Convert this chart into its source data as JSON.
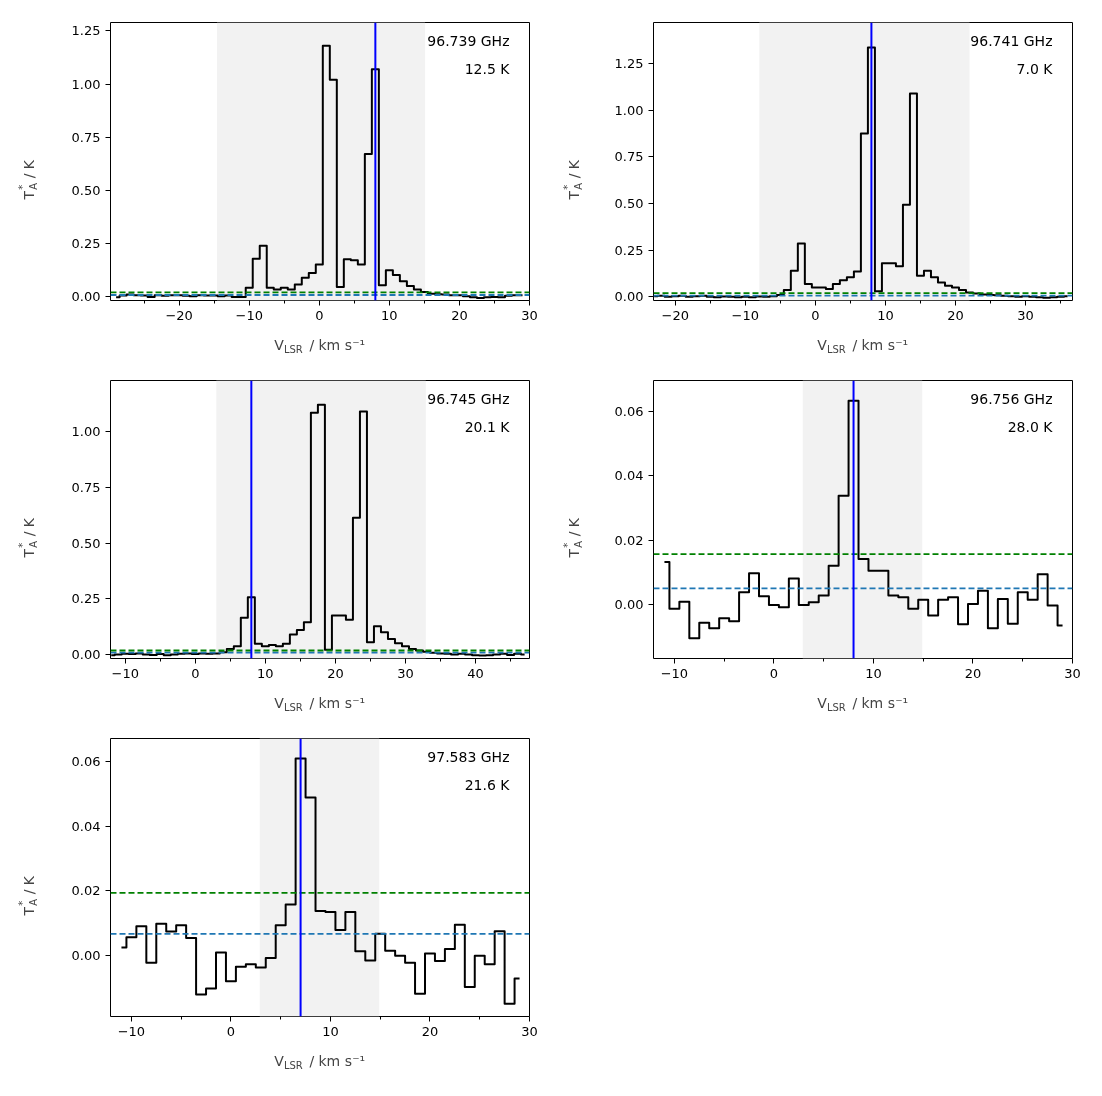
{
  "chart_data": [
    {
      "type": "step",
      "annotations": [
        "96.739 GHz",
        "12.5 K"
      ],
      "xlabel": "V$_{LSR}$ / km s⁻¹",
      "ylabel": "T$^{*}$$_{A}$ / K",
      "x": [
        -29,
        -28,
        -27,
        -26,
        -25,
        -24,
        -23,
        -22,
        -21,
        -20,
        -19,
        -18,
        -17,
        -16,
        -15,
        -14,
        -13,
        -12,
        -11,
        -10,
        -9,
        -8,
        -7,
        -6,
        -5,
        -4,
        -3,
        -2,
        -1,
        0,
        1,
        2,
        3,
        4,
        5,
        6,
        7,
        8,
        9,
        10,
        11,
        12,
        13,
        14,
        15,
        16,
        17,
        18,
        19,
        20,
        21,
        22,
        23,
        24,
        25,
        26,
        27,
        28,
        29
      ],
      "series": [
        {
          "color": "#000000",
          "values": [
            -0.005,
            0.003,
            0.008,
            0.005,
            0.003,
            -0.003,
            0.005,
            0.002,
            0.005,
            0.005,
            0.002,
            0.0,
            0.005,
            0.003,
            0.003,
            0.0,
            0.003,
            -0.003,
            -0.003,
            0.04,
            0.177,
            0.238,
            0.04,
            0.032,
            0.04,
            0.032,
            0.055,
            0.087,
            0.11,
            0.15,
            1.18,
            1.02,
            0.044,
            0.174,
            0.17,
            0.15,
            0.67,
            1.07,
            0.052,
            0.122,
            0.1,
            0.071,
            0.048,
            0.032,
            0.02,
            0.012,
            0.01,
            0.008,
            0.005,
            0.005,
            0.0,
            -0.005,
            -0.008,
            -0.005,
            -0.003,
            -0.005,
            0.002,
            0.005,
            0.005
          ]
        }
      ],
      "xlim": [
        -29.8,
        30
      ],
      "ylim": [
        -0.02,
        1.29
      ],
      "xticks": [
        -20,
        -10,
        0,
        10,
        20,
        30
      ],
      "yticks": [
        {
          "value": 0,
          "label": "0.00"
        },
        0.25,
        {
          "value": 0.5,
          "label": "0.50"
        },
        0.75,
        {
          "value": 1,
          "label": "1.00"
        },
        1.25
      ],
      "ref_lines": [
        {
          "axis": "y",
          "value": 0.006,
          "color": "#1f77b4",
          "line_style": "dashed"
        },
        {
          "axis": "y",
          "value": 0.018,
          "color": "#008000",
          "line_style": "dashed"
        },
        {
          "axis": "x",
          "value": 8,
          "color": "#0000ff",
          "line_style": "solid"
        }
      ],
      "bands": [
        {
          "axis": "x",
          "from": -14.6,
          "to": 15.1,
          "color": "#f2f2f2"
        }
      ]
    },
    {
      "type": "step",
      "annotations": [
        "96.741 GHz",
        "7.0 K"
      ],
      "xlabel": "V$_{LSR}$ / km s⁻¹",
      "ylabel": "T$^{*}$$_{A}$ / K",
      "x": [
        -23,
        -22,
        -21,
        -20,
        -19,
        -18,
        -17,
        -16,
        -15,
        -14,
        -13,
        -12,
        -11,
        -10,
        -9,
        -8,
        -7,
        -6,
        -5,
        -4,
        -3,
        -2,
        -1,
        0,
        1,
        2,
        3,
        4,
        5,
        6,
        7,
        8,
        9,
        10,
        11,
        12,
        13,
        14,
        15,
        16,
        17,
        18,
        19,
        20,
        21,
        22,
        23,
        24,
        25,
        26,
        27,
        28,
        29,
        30,
        31,
        32,
        33,
        34,
        35,
        36
      ],
      "series": [
        {
          "color": "#000000",
          "values": [
            0.003,
            0.005,
            0.0,
            0.003,
            0.005,
            0.0,
            0.003,
            0.005,
            0.0,
            -0.002,
            0.002,
            0.0,
            -0.003,
            0.0,
            -0.003,
            0.002,
            0.0,
            0.003,
            0.01,
            0.036,
            0.139,
            0.286,
            0.068,
            0.05,
            0.05,
            0.041,
            0.068,
            0.089,
            0.104,
            0.136,
            0.875,
            1.336,
            0.029,
            0.18,
            0.18,
            0.163,
            0.493,
            1.089,
            0.113,
            0.139,
            0.104,
            0.077,
            0.059,
            0.05,
            0.036,
            0.023,
            0.018,
            0.012,
            0.01,
            0.008,
            0.005,
            0.003,
            0.0,
            0.003,
            0.0,
            -0.003,
            -0.005,
            -0.003,
            0.0,
            0.003
          ]
        }
      ],
      "xlim": [
        -23.1,
        36.7
      ],
      "ylim": [
        -0.02,
        1.47
      ],
      "xticks": [
        -20,
        -10,
        0,
        10,
        20,
        30
      ],
      "yticks": [
        {
          "value": 0,
          "label": "0.00"
        },
        0.25,
        {
          "value": 0.5,
          "label": "0.50"
        },
        0.75,
        {
          "value": 1,
          "label": "1.00"
        },
        1.25
      ],
      "ref_lines": [
        {
          "axis": "y",
          "value": 0.006,
          "color": "#1f77b4",
          "line_style": "dashed"
        },
        {
          "axis": "y",
          "value": 0.02,
          "color": "#008000",
          "line_style": "dashed"
        },
        {
          "axis": "x",
          "value": 8,
          "color": "#0000ff",
          "line_style": "solid"
        }
      ],
      "bands": [
        {
          "axis": "x",
          "from": -8,
          "to": 22,
          "color": "#f2f2f2"
        }
      ]
    },
    {
      "type": "step",
      "annotations": [
        "96.745 GHz",
        "20.1 K"
      ],
      "xlabel": "V$_{LSR}$ / km s⁻¹",
      "ylabel": "T$^{*}$$_{A}$ / K",
      "x": [
        -12,
        -11,
        -10,
        -9,
        -8,
        -7,
        -6,
        -5,
        -4,
        -3,
        -2,
        -1,
        0,
        1,
        2,
        3,
        4,
        5,
        6,
        7,
        8,
        9,
        10,
        11,
        12,
        13,
        14,
        15,
        16,
        17,
        18,
        19,
        20,
        21,
        22,
        23,
        24,
        25,
        26,
        27,
        28,
        29,
        30,
        31,
        32,
        33,
        34,
        35,
        36,
        37,
        38,
        39,
        40,
        41,
        42,
        43,
        44,
        45,
        46,
        47
      ],
      "series": [
        {
          "color": "#000000",
          "values": [
            -0.003,
            0.0,
            0.003,
            0.002,
            0.005,
            0.0,
            -0.002,
            0.002,
            -0.003,
            0.0,
            0.003,
            0.005,
            0.002,
            0.005,
            0.003,
            0.005,
            0.01,
            0.025,
            0.037,
            0.165,
            0.257,
            0.048,
            0.037,
            0.043,
            0.037,
            0.048,
            0.09,
            0.11,
            0.145,
            1.085,
            1.121,
            0.021,
            0.175,
            0.175,
            0.156,
            0.614,
            1.091,
            0.055,
            0.127,
            0.1,
            0.07,
            0.051,
            0.037,
            0.025,
            0.018,
            0.012,
            0.008,
            0.005,
            0.003,
            0.0,
            0.003,
            0.0,
            -0.003,
            -0.005,
            -0.003,
            0.0,
            0.003,
            -0.002,
            0.003,
            0.0
          ]
        }
      ],
      "xlim": [
        -12.1,
        47.7
      ],
      "ylim": [
        -0.018,
        1.23
      ],
      "xticks": [
        -10,
        0,
        10,
        20,
        30,
        40
      ],
      "yticks": [
        {
          "value": 0,
          "label": "0.00"
        },
        0.25,
        {
          "value": 0.5,
          "label": "0.50"
        },
        0.75,
        {
          "value": 1,
          "label": "1.00"
        }
      ],
      "ref_lines": [
        {
          "axis": "y",
          "value": 0.008,
          "color": "#1f77b4",
          "line_style": "dashed"
        },
        {
          "axis": "y",
          "value": 0.018,
          "color": "#008000",
          "line_style": "dashed"
        },
        {
          "axis": "x",
          "value": 8,
          "color": "#0000ff",
          "line_style": "solid"
        }
      ],
      "bands": [
        {
          "axis": "x",
          "from": 3,
          "to": 32.9,
          "color": "#f2f2f2"
        }
      ]
    },
    {
      "type": "step",
      "annotations": [
        "96.756 GHz",
        "28.0 K"
      ],
      "xlabel": "V$_{LSR}$ / km s⁻¹",
      "ylabel": "T$^{*}$$_{A}$ / K",
      "x": [
        -11,
        -10,
        -9,
        -8,
        -7,
        -6,
        -5,
        -4,
        -3,
        -2,
        -1,
        0,
        1,
        2,
        3,
        4,
        5,
        6,
        7,
        8,
        9,
        10,
        11,
        12,
        13,
        14,
        15,
        16,
        17,
        18,
        19,
        20,
        21,
        22,
        23,
        24,
        25,
        26,
        27,
        28,
        29
      ],
      "series": [
        {
          "color": "#000000",
          "values": [
            0.0133,
            -0.0012,
            0.001,
            -0.0103,
            -0.0055,
            -0.0072,
            -0.0041,
            -0.0051,
            0.0039,
            0.0098,
            0.0027,
            0.0,
            -0.0007,
            0.0082,
            0.0,
            0.0008,
            0.0029,
            0.0121,
            0.0338,
            0.0632,
            0.0142,
            0.0106,
            0.0106,
            0.0029,
            0.0024,
            -0.0012,
            0.0016,
            -0.0033,
            0.0016,
            0.0024,
            -0.006,
            0.0003,
            0.0044,
            -0.0072,
            0.0018,
            -0.0058,
            0.0039,
            0.0016,
            0.0095,
            -0.0002,
            -0.0064
          ]
        }
      ],
      "xlim": [
        -12.1,
        30
      ],
      "ylim": [
        -0.0166,
        0.0695
      ],
      "xticks": [
        -10,
        0,
        10,
        20,
        30
      ],
      "yticks": [
        {
          "value": 0,
          "label": "0.00"
        },
        0.02,
        0.04,
        0.06
      ],
      "ref_lines": [
        {
          "axis": "y",
          "value": 0.0051,
          "color": "#1f77b4",
          "line_style": "dashed"
        },
        {
          "axis": "y",
          "value": 0.0157,
          "color": "#008000",
          "line_style": "dashed"
        },
        {
          "axis": "x",
          "value": 8,
          "color": "#0000ff",
          "line_style": "solid"
        }
      ],
      "bands": [
        {
          "axis": "x",
          "from": 2.9,
          "to": 14.9,
          "color": "#f2f2f2"
        }
      ]
    },
    {
      "type": "step",
      "annotations": [
        "97.583 GHz",
        "21.6 K"
      ],
      "xlabel": "V$_{LSR}$ / km s⁻¹",
      "ylabel": "T$^{*}$$_{A}$ / K",
      "x": [
        -11,
        -10,
        -9,
        -8,
        -7,
        -6,
        -5,
        -4,
        -3,
        -2,
        -1,
        0,
        1,
        2,
        3,
        4,
        5,
        6,
        7,
        8,
        9,
        10,
        11,
        12,
        13,
        14,
        15,
        16,
        17,
        18,
        19,
        20,
        21,
        22,
        23,
        24,
        25,
        26,
        27,
        28,
        29
      ],
      "series": [
        {
          "color": "#000000",
          "values": [
            0.0026,
            0.0057,
            0.0091,
            -0.0021,
            0.0099,
            0.0075,
            0.0094,
            0.0055,
            -0.0119,
            -0.0101,
            0.001,
            -0.0078,
            -0.0034,
            -0.0026,
            -0.0036,
            -0.0007,
            0.0094,
            0.0158,
            0.0608,
            0.0488,
            0.0138,
            0.0135,
            0.008,
            0.0135,
            0.0014,
            -0.0014,
            0.0068,
            0.0016,
            0.0,
            -0.0021,
            -0.0117,
            0.0007,
            -0.0016,
            0.0021,
            0.0096,
            -0.0096,
            0.0,
            -0.0026,
            0.0076,
            -0.0148,
            -0.007
          ]
        }
      ],
      "xlim": [
        -12.1,
        30
      ],
      "ylim": [
        -0.0187,
        0.067
      ],
      "xticks": [
        -10,
        0,
        10,
        20,
        30
      ],
      "yticks": [
        {
          "value": 0,
          "label": "0.00"
        },
        0.02,
        0.04,
        0.06
      ],
      "ref_lines": [
        {
          "axis": "y",
          "value": 0.0068,
          "color": "#1f77b4",
          "line_style": "dashed"
        },
        {
          "axis": "y",
          "value": 0.0194,
          "color": "#008000",
          "line_style": "dashed"
        },
        {
          "axis": "x",
          "value": 7,
          "color": "#0000ff",
          "line_style": "solid"
        }
      ],
      "bands": [
        {
          "axis": "x",
          "from": 2.9,
          "to": 14.9,
          "color": "#f2f2f2"
        }
      ]
    }
  ]
}
